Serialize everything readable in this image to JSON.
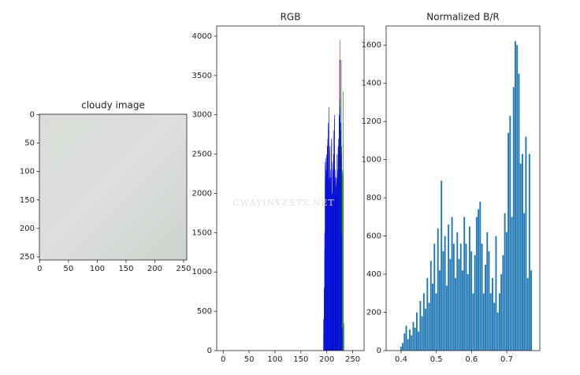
{
  "chart_data": [
    {
      "type": "image",
      "title": "cloudy image",
      "xlim": [
        -0.5,
        255.5
      ],
      "ylim": [
        255.5,
        -0.5
      ],
      "xticks": [
        0,
        50,
        100,
        150,
        200,
        250
      ],
      "yticks": [
        0,
        50,
        100,
        150,
        200,
        250
      ]
    },
    {
      "type": "histogram",
      "title": "RGB",
      "watermark": "CWAYINVESTS.NET",
      "xlim": [
        -12.5,
        272
      ],
      "ylim": [
        0,
        4130
      ],
      "xticks": [
        0,
        50,
        100,
        150,
        200,
        250
      ],
      "yticks": [
        0,
        500,
        1000,
        1500,
        2000,
        2500,
        3000,
        3500,
        4000
      ],
      "x": [
        194,
        195,
        196,
        197,
        198,
        199,
        200,
        201,
        202,
        203,
        204,
        205,
        206,
        207,
        208,
        209,
        210,
        211,
        212,
        213,
        214,
        215,
        216,
        217,
        218,
        219,
        220,
        221,
        222,
        223,
        224,
        225,
        226,
        227,
        228,
        229,
        230,
        231,
        232,
        233
      ],
      "series": [
        {
          "color": "#ff0000",
          "values": [
            200,
            500,
            1200,
            2100,
            2300,
            2200,
            2400,
            2500,
            2600,
            2800,
            2900,
            2100,
            2500,
            2200,
            2100,
            2600,
            1900,
            2300,
            2200,
            2700,
            2400,
            2900,
            2100,
            2200,
            2000,
            2100,
            2400,
            2200,
            2500,
            2600,
            2900,
            3200,
            3950,
            2800,
            2400,
            1400,
            250,
            0,
            0,
            0
          ]
        },
        {
          "color": "#008000",
          "values": [
            250,
            600,
            1300,
            2200,
            2350,
            2250,
            2450,
            2550,
            2650,
            2850,
            3000,
            2150,
            2550,
            2250,
            2150,
            2650,
            1950,
            2350,
            2250,
            2750,
            2450,
            2950,
            2150,
            2250,
            2050,
            2150,
            2450,
            2250,
            2550,
            2650,
            2950,
            3000,
            3200,
            2800,
            3700,
            2600,
            2300,
            2250,
            3300,
            350
          ]
        },
        {
          "color": "#0000ff",
          "values": [
            400,
            800,
            1500,
            2400,
            2450,
            2300,
            2500,
            2600,
            2700,
            2900,
            3100,
            2200,
            2600,
            2300,
            2200,
            2700,
            2000,
            2400,
            2300,
            2800,
            2500,
            3000,
            2200,
            2300,
            2100,
            2200,
            2500,
            2300,
            2600,
            2700,
            3000,
            3700,
            3100,
            2900,
            2500,
            1500,
            300,
            0,
            0,
            0
          ]
        }
      ]
    },
    {
      "type": "histogram",
      "title": "Normalized B/R",
      "xlim": [
        0.3575,
        0.794
      ],
      "ylim": [
        0,
        1700
      ],
      "xticks": [
        0.4,
        0.5,
        0.6,
        0.7
      ],
      "yticks": [
        0,
        200,
        400,
        600,
        800,
        1000,
        1200,
        1400,
        1600
      ],
      "x": [
        0.4,
        0.405,
        0.41,
        0.415,
        0.42,
        0.425,
        0.43,
        0.435,
        0.44,
        0.445,
        0.45,
        0.455,
        0.46,
        0.465,
        0.47,
        0.475,
        0.48,
        0.485,
        0.49,
        0.495,
        0.5,
        0.505,
        0.51,
        0.515,
        0.52,
        0.525,
        0.53,
        0.535,
        0.54,
        0.545,
        0.55,
        0.555,
        0.56,
        0.565,
        0.57,
        0.575,
        0.58,
        0.585,
        0.59,
        0.595,
        0.6,
        0.605,
        0.61,
        0.615,
        0.62,
        0.625,
        0.63,
        0.635,
        0.64,
        0.645,
        0.65,
        0.655,
        0.66,
        0.665,
        0.67,
        0.675,
        0.68,
        0.685,
        0.69,
        0.695,
        0.7,
        0.705,
        0.71,
        0.715,
        0.72,
        0.725,
        0.73,
        0.735,
        0.74,
        0.745,
        0.75,
        0.755,
        0.76,
        0.765,
        0.77
      ],
      "series": [
        {
          "color": "#1f77b4",
          "values": [
            20,
            40,
            90,
            130,
            60,
            110,
            80,
            150,
            120,
            200,
            100,
            260,
            180,
            300,
            220,
            380,
            250,
            470,
            350,
            560,
            300,
            640,
            420,
            890,
            520,
            600,
            340,
            660,
            480,
            700,
            560,
            380,
            620,
            480,
            560,
            420,
            700,
            560,
            400,
            650,
            520,
            300,
            500,
            700,
            740,
            780,
            560,
            300,
            450,
            620,
            520,
            300,
            380,
            250,
            600,
            200,
            300,
            400,
            500,
            720,
            620,
            1140,
            1230,
            700,
            1380,
            1620,
            1600,
            1450,
            980,
            1030,
            720,
            1120,
            380,
            1030,
            420
          ]
        }
      ]
    }
  ]
}
